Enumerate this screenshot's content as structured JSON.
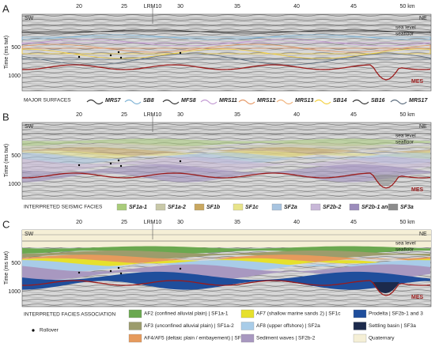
{
  "panels": [
    {
      "label": "A",
      "distance_labels": [
        "20",
        "25",
        "LRM10",
        "30",
        "35",
        "40",
        "45",
        "50 km"
      ],
      "sw": "SW",
      "ne": "NE",
      "sea_level": "sea level",
      "seafloor": "seafloor",
      "y_axis_title": "Time (ms twt)",
      "y_ticks": [
        "500",
        "1000"
      ],
      "boundary_label": "MES",
      "legend": {
        "title": "MAJOR SURFACES",
        "items": [
          {
            "label": "MRS7",
            "color": "#333333"
          },
          {
            "label": "SB8",
            "color": "#7fb3d5"
          },
          {
            "label": "MFS8",
            "color": "#333333"
          },
          {
            "label": "MRS11",
            "color": "#c39bd3"
          },
          {
            "label": "MRS12",
            "color": "#e59866"
          },
          {
            "label": "MRS13",
            "color": "#f0b27a"
          },
          {
            "label": "SB14",
            "color": "#f4d03f"
          },
          {
            "label": "SB16",
            "color": "#333333"
          },
          {
            "label": "MRS17",
            "color": "#5d6d7e"
          }
        ]
      }
    },
    {
      "label": "B",
      "distance_labels": [
        "20",
        "25",
        "LRM10",
        "30",
        "35",
        "40",
        "45",
        "50 km"
      ],
      "sw": "SW",
      "ne": "NE",
      "sea_level": "sea level",
      "seafloor": "seafloor",
      "y_axis_title": "Time (ms twt)",
      "y_ticks": [
        "500",
        "1000"
      ],
      "boundary_label": "MES",
      "legend": {
        "title": "INTERPRETED SEISMIC FACIES",
        "items": [
          {
            "label": "SF1a-1",
            "color": "#a9cc7a"
          },
          {
            "label": "SF1a-2",
            "color": "#c8c8a8"
          },
          {
            "label": "SF1b",
            "color": "#c9a860"
          },
          {
            "label": "SF1c",
            "color": "#e8e48a"
          },
          {
            "label": "SF2a",
            "color": "#a8c4e0"
          },
          {
            "label": "SF2b-2",
            "color": "#c8b8d8"
          },
          {
            "label": "SF2b-1 and 3",
            "color": "#9c8cbc"
          },
          {
            "label": "SF3a",
            "color": "#8c8c8c"
          }
        ]
      }
    },
    {
      "label": "C",
      "distance_labels": [
        "20",
        "25",
        "LRM10",
        "30",
        "35",
        "40",
        "45",
        "50 km"
      ],
      "sw": "SW",
      "ne": "NE",
      "sea_level": "sea level",
      "seafloor": "seafloor",
      "y_axis_title": "Time (ms twt)",
      "y_ticks": [
        "500",
        "1000"
      ],
      "boundary_label": "MES",
      "legend": {
        "title": "INTERPRETED FACIES ASSOCIATION",
        "marker": "Rollover",
        "items": [
          {
            "label": "AF2 (confined alluvial plain) | SF1a-1",
            "color": "#6aa84f"
          },
          {
            "label": "AF3 (unconfined alluvial plain) | SF1a-2",
            "color": "#9c9c6c"
          },
          {
            "label": "AF4/AF5 (deltaic plain / embayement) | SF1b",
            "color": "#e69a5c"
          },
          {
            "label": "AF7 (shallow marine sands 2) | SF1c",
            "color": "#e6e02c"
          },
          {
            "label": "AF8 (upper offshore) | SF2a",
            "color": "#a8cce8"
          },
          {
            "label": "Sediment waves | SF2b-2",
            "color": "#a898c0"
          },
          {
            "label": "Prodelta | SF2b-1 and 3",
            "color": "#1f4e9c"
          },
          {
            "label": "Settling basin | SF3a",
            "color": "#1c2a4c"
          },
          {
            "label": "Quaternary",
            "color": "#f5efd6"
          }
        ]
      }
    }
  ]
}
